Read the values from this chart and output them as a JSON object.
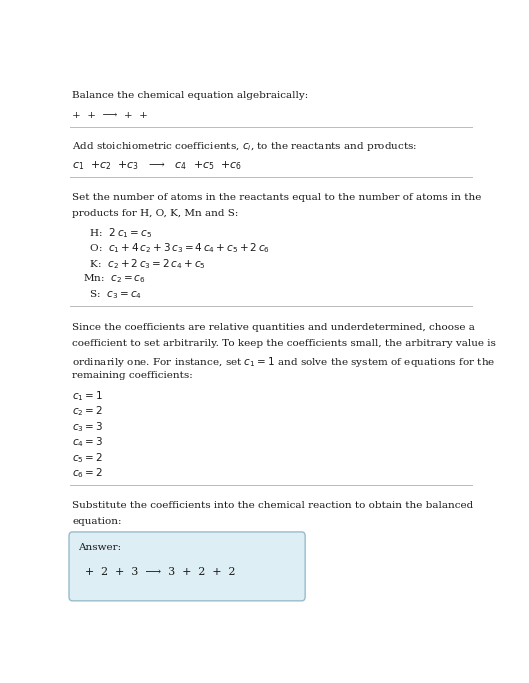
{
  "bg_color": "#ffffff",
  "text_color": "#1a1a1a",
  "title": "Balance the chemical equation algebraically:",
  "section1_line1": "+  +  ⟶  +  +",
  "section2_header": "Add stoichiometric coefficients, $c_i$, to the reactants and products:",
  "section2_line1": "$c_1$  +$c_2$  +$c_3$   ⟶   $c_4$  +$c_5$  +$c_6$",
  "section3_header_1": "Set the number of atoms in the reactants equal to the number of atoms in the",
  "section3_header_2": "products for H, O, K, Mn and S:",
  "section3_equations": [
    "  H:  $2\\,c_1 = c_5$",
    "  O:  $c_1 + 4\\,c_2 + 3\\,c_3 = 4\\,c_4 + c_5 + 2\\,c_6$",
    "  K:  $c_2 + 2\\,c_3 = 2\\,c_4 + c_5$",
    "Mn:  $c_2 = c_6$",
    "  S:  $c_3 = c_4$"
  ],
  "section4_header_1": "Since the coefficients are relative quantities and underdetermined, choose a",
  "section4_header_2": "coefficient to set arbitrarily. To keep the coefficients small, the arbitrary value is",
  "section4_header_3": "ordinarily one. For instance, set $c_1 = 1$ and solve the system of equations for the",
  "section4_header_4": "remaining coefficients:",
  "section4_equations": [
    "$c_1 = 1$",
    "$c_2 = 2$",
    "$c_3 = 3$",
    "$c_4 = 3$",
    "$c_5 = 2$",
    "$c_6 = 2$"
  ],
  "section5_header_1": "Substitute the coefficients into the chemical reaction to obtain the balanced",
  "section5_header_2": "equation:",
  "answer_label": "Answer:",
  "answer_line": "  +  2  +  3  ⟶  3  +  2  +  2",
  "answer_box_color": "#ddeef5",
  "answer_box_border": "#99bbcc",
  "divider_color": "#bbbbbb",
  "fs": 7.5
}
